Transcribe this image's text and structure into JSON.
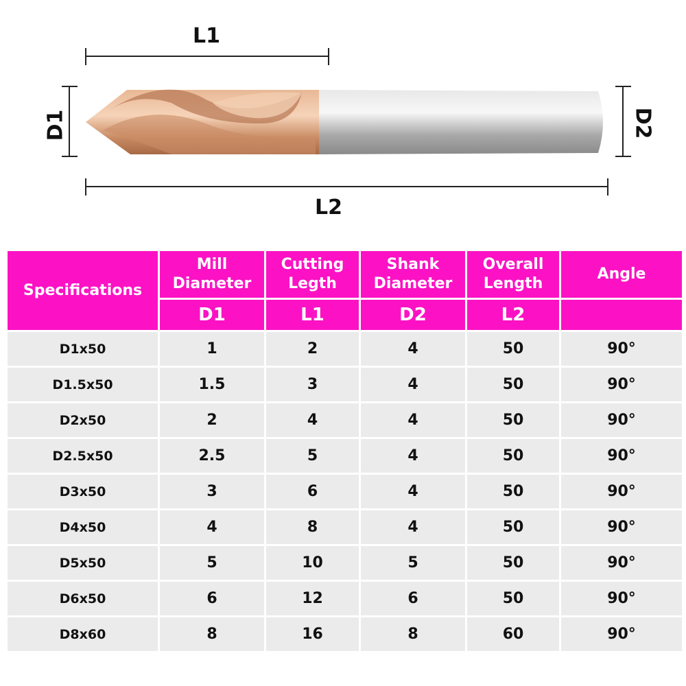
{
  "drawing": {
    "labels": {
      "l1": "L1",
      "l2": "L2",
      "d1": "D1",
      "d2": "D2"
    },
    "colors": {
      "coating": "#d9a27f",
      "shank": "#b9b9b9",
      "header": "#fc12c4"
    }
  },
  "table": {
    "header": {
      "spec": "Specifications",
      "cols": [
        {
          "label": "Mill Diameter",
          "sub": "D1"
        },
        {
          "label": "Cutting Legth",
          "sub": "L1"
        },
        {
          "label": "Shank Diameter",
          "sub": "D2"
        },
        {
          "label": "Overall Length",
          "sub": "L2"
        },
        {
          "label": "Angle",
          "sub": ""
        }
      ]
    },
    "rows": [
      [
        "D1x50",
        "1",
        "2",
        "4",
        "50",
        "90°"
      ],
      [
        "D1.5x50",
        "1.5",
        "3",
        "4",
        "50",
        "90°"
      ],
      [
        "D2x50",
        "2",
        "4",
        "4",
        "50",
        "90°"
      ],
      [
        "D2.5x50",
        "2.5",
        "5",
        "4",
        "50",
        "90°"
      ],
      [
        "D3x50",
        "3",
        "6",
        "4",
        "50",
        "90°"
      ],
      [
        "D4x50",
        "4",
        "8",
        "4",
        "50",
        "90°"
      ],
      [
        "D5x50",
        "5",
        "10",
        "5",
        "50",
        "90°"
      ],
      [
        "D6x50",
        "6",
        "12",
        "6",
        "50",
        "90°"
      ],
      [
        "D8x60",
        "8",
        "16",
        "8",
        "60",
        "90°"
      ]
    ]
  }
}
